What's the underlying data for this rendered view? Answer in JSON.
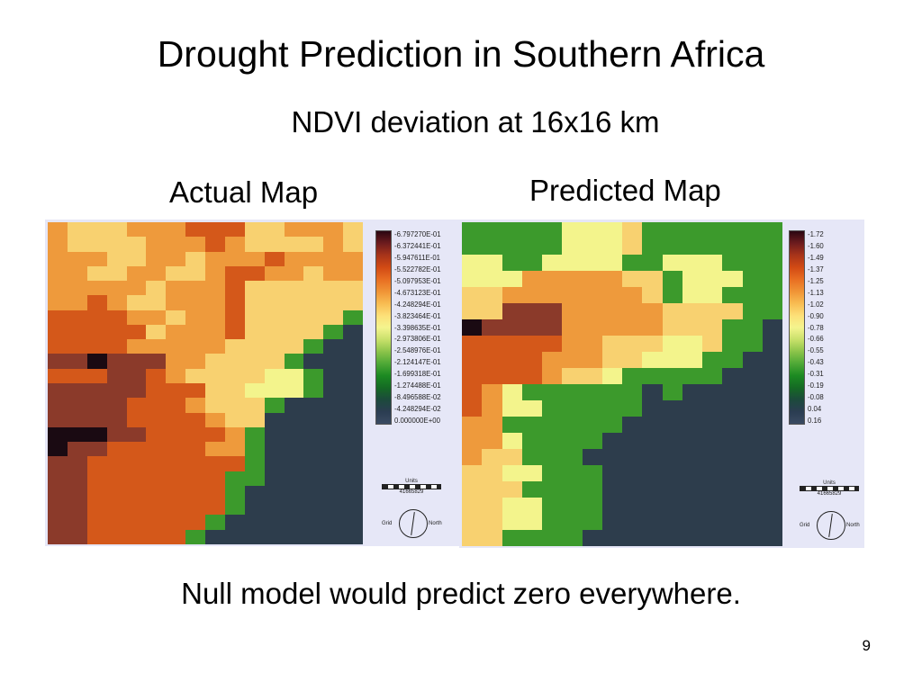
{
  "title": "Drought Prediction in Southern Africa",
  "subtitle": "NDVI deviation at 16x16 km",
  "actual": {
    "label": "Actual Map",
    "legend": [
      "-6.797270E-01",
      "-6.372441E-01",
      "-5.947611E-01",
      "-5.522782E-01",
      "-5.097953E-01",
      "-4.673123E-01",
      "-4.248294E-01",
      "-3.823464E-01",
      "-3.398635E-01",
      "-2.973806E-01",
      "-2.548976E-01",
      "-2.124147E-01",
      "-1.699318E-01",
      "-1.274488E-01",
      "-8.496588E-02",
      "-4.248294E-02",
      "0.000000E+00"
    ],
    "units_label": "Units",
    "scale_value": "41665829",
    "grid_label": "Grid",
    "north_label": "North",
    "rows": [
      "OLLLOOOoooLLOOOL",
      "OLLLLOOOoOLLLLOL",
      "OOOLLOOLOOOoOOOO",
      "OOLLOOLLOooOOLOO",
      "OOOOOLOOOoLLLLLL",
      "OOoOLLOOOoLLLLLL",
      "ooooOOLOOoLLLLLG",
      "oooooLOOOoLLLLGF",
      "ooooOOOOOLLLLGFF",
      "rrKrrrOOLLLLGFFF",
      "ooorroOLLLLYYGFF",
      "rrrrroooLLYYYGFF",
      "rrrroooOLLLGFFFF",
      "rrrrooooOLLFFFFF",
      "KKKrrooooOGFFFFF",
      "KrroooooOOGFFFFF",
      "rrooooooooGFFFFF",
      "rroooooooGGFFFFF",
      "rroooooooGFFFFFF",
      "rroooooooGFFFFFF",
      "rrooooooGFFFFFFF",
      "rroooooGFFFFFFFF"
    ]
  },
  "predicted": {
    "label": "Predicted Map",
    "legend": [
      "-1.72",
      "-1.60",
      "-1.49",
      "-1.37",
      "-1.25",
      "-1.13",
      "-1.02",
      "-0.90",
      "-0.78",
      "-0.66",
      "-0.55",
      "-0.43",
      "-0.31",
      "-0.19",
      "-0.08",
      "0.04",
      "0.16"
    ],
    "units_label": "Units",
    "scale_value": "41665829",
    "grid_label": "Grid",
    "north_label": "North",
    "rows": [
      "GGGGGYYYLGGGGGGG",
      "GGGGGYYYLGGGGGGG",
      "YYGGYYYYGGYYYGGG",
      "YYYOOOOOLLGYYYGG",
      "LLOOOOOOOLGYYGGG",
      "LLrrrOOOOOLLLLGG",
      "KrrrrOOOOOLLLGGF",
      "oooooOOLLLYYLGGF",
      "ooooOOOLLYYYGGFF",
      "ooooOLLYGGGGGFFF",
      "oOYGGGGGGFGFFFFF",
      "oOYYGGGGGFFFFFFF",
      "OOGGGGGGFFFFFFFF",
      "OOYGGGGFFFFFFFFF",
      "OLLGGGFFFFFFFFFF",
      "LLYYGGGFFFFFFFFF",
      "LLLGGGGFFFFFFFFF",
      "LLYYGGGFFFFFFFFF",
      "LLYYGGGFFFFFFFFF",
      "LLGGGGFFFFFFFFFF"
    ]
  },
  "palette": {
    "K": "#1a0a12",
    "r": "#8b3a2a",
    "o": "#d4581a",
    "O": "#ee9a3c",
    "L": "#f8d170",
    "Y": "#f3f48c",
    "G": "#3c9a2c",
    "F": "#2d3d4c"
  },
  "legend_colors": [
    "#2a0612",
    "#6e1c1e",
    "#a8341a",
    "#d24a14",
    "#e86e22",
    "#f09436",
    "#f8bc52",
    "#fde078",
    "#f4f48e",
    "#c8e06a",
    "#8cc44a",
    "#4ea836",
    "#1c8a22",
    "#156a24",
    "#1c4a3c",
    "#2b3d52",
    "#3a4a62"
  ],
  "caption": "Null model would predict zero everywhere.",
  "page_number": "9"
}
